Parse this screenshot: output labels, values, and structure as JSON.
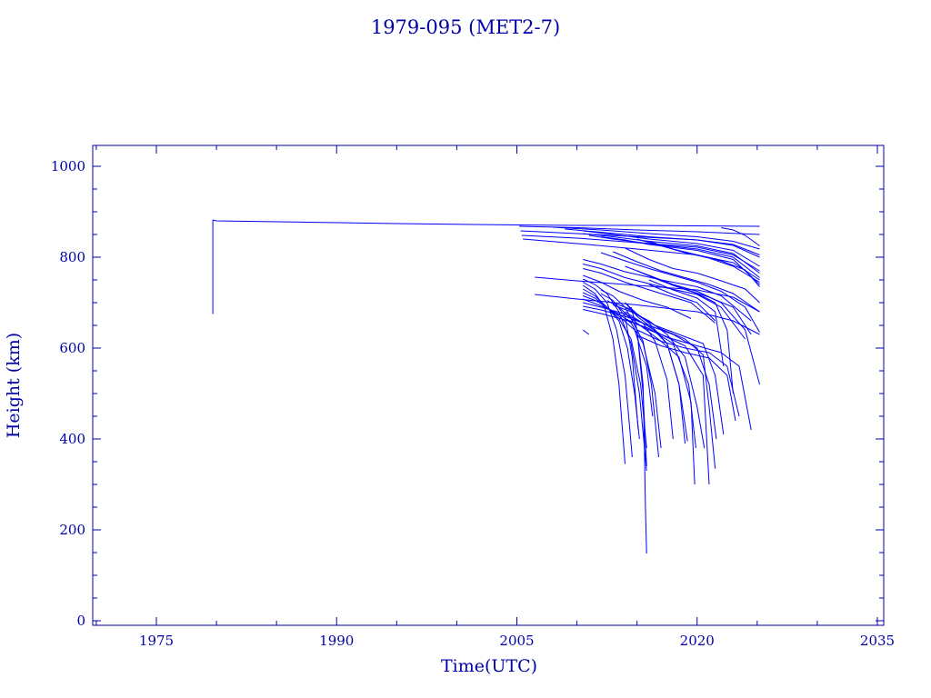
{
  "chart_data": {
    "type": "line",
    "title": "1979-095 (MET2-7)",
    "xlabel": "Time(UTC)",
    "ylabel": "Height (km)",
    "xlim": [
      1970,
      2035
    ],
    "ylim": [
      0,
      1050
    ],
    "x_ticks": [
      1975,
      1990,
      2005,
      2020,
      2035
    ],
    "x_tick_labels": [
      "1975",
      "1990",
      "2005",
      "2020",
      "2035"
    ],
    "y_ticks": [
      0,
      200,
      400,
      600,
      800,
      1000
    ],
    "y_tick_labels": [
      "0",
      "200",
      "400",
      "600",
      "800",
      "1000"
    ],
    "grid": false,
    "colors": {
      "axis": "#0000aa",
      "series": "#0000ff"
    },
    "series": [
      {
        "x": [
          1979.7,
          1980.0,
          1995.0,
          2005.0,
          2010.0,
          2015.0,
          2020.0,
          2025.2
        ],
        "y": [
          882,
          880,
          874,
          871,
          870,
          870,
          869,
          868
        ]
      },
      {
        "x": [
          1979.7,
          1979.7
        ],
        "y": [
          882,
          675
        ]
      },
      {
        "x": [
          2005.2,
          2010.0,
          2015.0,
          2020.0,
          2025.2
        ],
        "y": [
          868,
          865,
          860,
          856,
          850
        ]
      },
      {
        "x": [
          2005.3,
          2010.0,
          2015.0,
          2020.0,
          2023.0,
          2025.2
        ],
        "y": [
          858,
          852,
          845,
          838,
          828,
          805
        ]
      },
      {
        "x": [
          2005.4,
          2010.0,
          2015.0,
          2020.0,
          2023.0,
          2025.2
        ],
        "y": [
          848,
          842,
          832,
          822,
          805,
          770
        ]
      },
      {
        "x": [
          2005.5,
          2010.0,
          2015.0,
          2020.0,
          2023.0,
          2025.2
        ],
        "y": [
          840,
          830,
          818,
          805,
          788,
          750
        ]
      },
      {
        "x": [
          2006.5,
          2010.0,
          2015.0,
          2020.0,
          2023.0,
          2025.2
        ],
        "y": [
          756,
          748,
          738,
          728,
          712,
          680
        ]
      },
      {
        "x": [
          2006.5,
          2010.0,
          2015.0,
          2020.0,
          2023.0,
          2025.2
        ],
        "y": [
          718,
          708,
          695,
          680,
          660,
          630
        ]
      },
      {
        "x": [
          2008.0,
          2012.0,
          2016.0,
          2020.0,
          2023.0,
          2025.2
        ],
        "y": [
          866,
          860,
          852,
          845,
          835,
          818
        ]
      },
      {
        "x": [
          2009.0,
          2012.0,
          2016.0,
          2020.0,
          2023.0,
          2025.2
        ],
        "y": [
          862,
          855,
          845,
          838,
          826,
          800
        ]
      },
      {
        "x": [
          2010.5,
          2013.0,
          2016.0,
          2020.0,
          2023.0,
          2025.2
        ],
        "y": [
          858,
          850,
          840,
          830,
          815,
          780
        ]
      },
      {
        "x": [
          2010.5,
          2013.0,
          2016.0,
          2020.0,
          2023.0,
          2025.2
        ],
        "y": [
          852,
          845,
          835,
          825,
          808,
          765
        ]
      },
      {
        "x": [
          2011.0,
          2013.0,
          2016.0,
          2020.0,
          2023.0,
          2025.2
        ],
        "y": [
          848,
          840,
          830,
          818,
          800,
          755
        ]
      },
      {
        "x": [
          2012.0,
          2014.0,
          2016.0,
          2020.0,
          2023.0,
          2025.2
        ],
        "y": [
          845,
          838,
          828,
          815,
          795,
          740
        ]
      },
      {
        "x": [
          2010.5,
          2012.0,
          2014.0,
          2017.0,
          2020.0,
          2022.0,
          2024.5
        ],
        "y": [
          795,
          785,
          768,
          750,
          735,
          715,
          660
        ]
      },
      {
        "x": [
          2010.5,
          2012.0,
          2014.0,
          2017.0,
          2020.0,
          2022.0,
          2024.0
        ],
        "y": [
          785,
          775,
          755,
          735,
          718,
          690,
          620
        ]
      },
      {
        "x": [
          2010.5,
          2012.0,
          2014.0,
          2017.0,
          2019.5,
          2021.5
        ],
        "y": [
          775,
          765,
          745,
          720,
          700,
          655
        ]
      },
      {
        "x": [
          2010.5,
          2012.0,
          2013.5,
          2015.5,
          2017.5,
          2019.5
        ],
        "y": [
          760,
          745,
          725,
          705,
          690,
          665
        ]
      },
      {
        "x": [
          2010.5,
          2011.5,
          2012.5,
          2013.5,
          2014.5,
          2015.2,
          2015.8
        ],
        "y": [
          752,
          740,
          720,
          680,
          610,
          500,
          330
        ]
      },
      {
        "x": [
          2010.5,
          2011.5,
          2012.5,
          2013.3,
          2014.0,
          2014.6
        ],
        "y": [
          745,
          730,
          700,
          640,
          540,
          360
        ]
      },
      {
        "x": [
          2010.5,
          2011.5,
          2012.3,
          2013.0,
          2013.5,
          2014.0
        ],
        "y": [
          738,
          720,
          690,
          620,
          520,
          345
        ]
      },
      {
        "x": [
          2010.5,
          2011.5,
          2012.5,
          2013.5,
          2014.2,
          2014.8,
          2015.2
        ],
        "y": [
          730,
          715,
          690,
          660,
          600,
          500,
          400
        ]
      },
      {
        "x": [
          2010.5,
          2011.5,
          2012.5,
          2013.5,
          2014.5,
          2015.3,
          2015.8
        ],
        "y": [
          722,
          710,
          690,
          665,
          620,
          520,
          380
        ]
      },
      {
        "x": [
          2010.5,
          2011.5,
          2012.5,
          2013.5,
          2014.8,
          2015.8,
          2016.3
        ],
        "y": [
          715,
          705,
          690,
          670,
          640,
          560,
          450
        ]
      },
      {
        "x": [
          2010.5,
          2011.5,
          2012.5,
          2013.5,
          2014.5,
          2015.5,
          2016.5,
          2017.0
        ],
        "y": [
          708,
          698,
          688,
          675,
          655,
          610,
          500,
          380
        ]
      },
      {
        "x": [
          2010.5,
          2012.0,
          2014.0,
          2015.5,
          2016.5,
          2017.5,
          2018.0
        ],
        "y": [
          700,
          690,
          675,
          655,
          615,
          530,
          400
        ]
      },
      {
        "x": [
          2010.5,
          2012.0,
          2014.0,
          2016.0,
          2017.5,
          2018.5,
          2019.0
        ],
        "y": [
          692,
          684,
          670,
          650,
          610,
          520,
          390
        ]
      },
      {
        "x": [
          2010.5,
          2012.0,
          2014.0,
          2016.0,
          2018.0,
          2019.3,
          2019.9
        ],
        "y": [
          685,
          676,
          662,
          643,
          610,
          520,
          380
        ]
      },
      {
        "x": [
          2010.5,
          2011.0
        ],
        "y": [
          640,
          630
        ]
      },
      {
        "x": [
          2012.0,
          2013.0,
          2014.0,
          2015.0,
          2015.5,
          2015.8
        ],
        "y": [
          728,
          715,
          690,
          640,
          500,
          340
        ]
      },
      {
        "x": [
          2012.0,
          2013.0,
          2014.0,
          2014.6,
          2015.1
        ],
        "y": [
          720,
          705,
          670,
          580,
          420
        ]
      },
      {
        "x": [
          2012.5,
          2013.5,
          2014.5,
          2015.5,
          2016.2,
          2016.8
        ],
        "y": [
          705,
          690,
          665,
          615,
          520,
          360
        ]
      },
      {
        "x": [
          2013.0,
          2014.5,
          2016.0,
          2017.5,
          2018.5,
          2019.2
        ],
        "y": [
          700,
          685,
          655,
          610,
          520,
          395
        ]
      },
      {
        "x": [
          2013.0,
          2014.5,
          2016.0,
          2017.5,
          2019.0,
          2020.0,
          2020.6
        ],
        "y": [
          695,
          680,
          660,
          630,
          580,
          470,
          380
        ]
      },
      {
        "x": [
          2014.5,
          2015.0,
          2015.5,
          2015.6,
          2015.7,
          2015.8
        ],
        "y": [
          690,
          640,
          520,
          400,
          250,
          148
        ]
      },
      {
        "x": [
          2014.0,
          2015.0,
          2016.0,
          2018.0,
          2020.0,
          2021.0,
          2021.6
        ],
        "y": [
          700,
          670,
          650,
          630,
          600,
          520,
          400
        ]
      },
      {
        "x": [
          2014.0,
          2015.0,
          2016.5,
          2018.5,
          2020.5,
          2021.5,
          2022.2
        ],
        "y": [
          700,
          675,
          650,
          630,
          610,
          540,
          410
        ]
      },
      {
        "x": [
          2014.0,
          2015.5,
          2017.0,
          2019.0,
          2020.5,
          2021.0,
          2021.5
        ],
        "y": [
          690,
          665,
          642,
          620,
          585,
          470,
          335
        ]
      },
      {
        "x": [
          2014.0,
          2015.5,
          2017.0,
          2019.0,
          2020.5,
          2021.0
        ],
        "y": [
          680,
          655,
          630,
          605,
          540,
          300
        ]
      },
      {
        "x": [
          2014.0,
          2015.5,
          2017.0,
          2018.5,
          2019.5,
          2019.8
        ],
        "y": [
          675,
          645,
          615,
          580,
          480,
          300
        ]
      },
      {
        "x": [
          2014.0,
          2016.0,
          2018.0,
          2020.0,
          2022.0,
          2023.5,
          2024.5
        ],
        "y": [
          665,
          640,
          620,
          605,
          590,
          560,
          420
        ]
      },
      {
        "x": [
          2015.0,
          2017.0,
          2019.0,
          2021.0,
          2022.5,
          2023.5
        ],
        "y": [
          640,
          615,
          600,
          590,
          560,
          450
        ]
      },
      {
        "x": [
          2015.0,
          2017.0,
          2019.0,
          2021.0,
          2022.5,
          2023.2
        ],
        "y": [
          628,
          605,
          590,
          578,
          540,
          440
        ]
      },
      {
        "x": [
          2014.0,
          2016.0,
          2018.0,
          2020.0,
          2022.0,
          2024.0,
          2025.2
        ],
        "y": [
          820,
          795,
          775,
          765,
          748,
          730,
          700
        ]
      },
      {
        "x": [
          2013.0,
          2015.0,
          2017.0,
          2019.0,
          2021.0,
          2023.0,
          2025.2
        ],
        "y": [
          812,
          790,
          770,
          755,
          740,
          720,
          680
        ]
      },
      {
        "x": [
          2012.0,
          2014.0,
          2016.0,
          2018.0,
          2020.0,
          2022.0,
          2024.0,
          2025.2
        ],
        "y": [
          810,
          792,
          775,
          760,
          745,
          725,
          690,
          635
        ]
      },
      {
        "x": [
          2014.0,
          2016.0,
          2018.0,
          2020.0,
          2022.0,
          2024.0,
          2025.2
        ],
        "y": [
          780,
          760,
          740,
          725,
          700,
          640,
          520
        ]
      },
      {
        "x": [
          2015.0,
          2017.0,
          2019.0,
          2021.0,
          2023.0,
          2024.5
        ],
        "y": [
          770,
          748,
          730,
          712,
          690,
          630
        ]
      },
      {
        "x": [
          2016.0,
          2018.0,
          2020.0,
          2021.5,
          2022.5,
          2023.0
        ],
        "y": [
          760,
          738,
          720,
          700,
          640,
          500
        ]
      },
      {
        "x": [
          2016.0,
          2018.0,
          2020.0,
          2021.5,
          2022.2
        ],
        "y": [
          750,
          728,
          710,
          680,
          560
        ]
      },
      {
        "x": [
          2016.0,
          2018.0,
          2020.0,
          2021.5
        ],
        "y": [
          740,
          718,
          700,
          660
        ]
      },
      {
        "x": [
          2015.0,
          2017.0,
          2019.0,
          2021.0,
          2023.0,
          2025.2
        ],
        "y": [
          840,
          825,
          810,
          798,
          780,
          745
        ]
      },
      {
        "x": [
          2016.0,
          2018.0,
          2020.0,
          2022.0,
          2024.0,
          2025.2
        ],
        "y": [
          835,
          818,
          805,
          792,
          772,
          735
        ]
      },
      {
        "x": [
          2022.0,
          2023.0,
          2024.0,
          2025.2
        ],
        "y": [
          865,
          860,
          848,
          825
        ]
      }
    ]
  }
}
